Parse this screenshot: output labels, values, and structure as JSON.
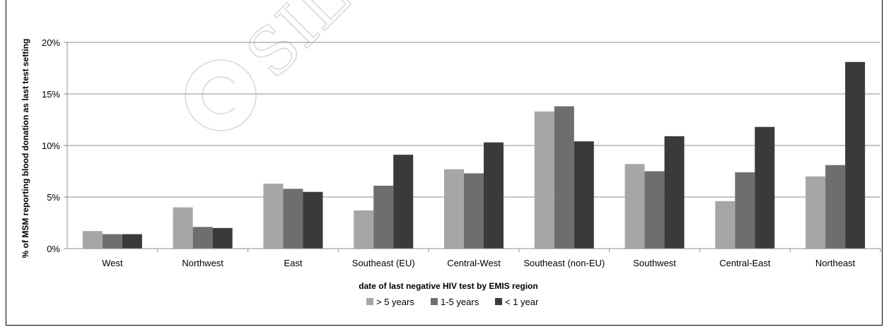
{
  "chart_data": {
    "type": "bar",
    "categories": [
      "West",
      "Northwest",
      "East",
      "Southeast (EU)",
      "Central-West",
      "Southeast (non-EU)",
      "Southwest",
      "Central-East",
      "Northeast"
    ],
    "series": [
      {
        "name": "> 5 years",
        "values": [
          1.7,
          4.0,
          6.3,
          3.7,
          7.7,
          13.3,
          8.2,
          4.6,
          7.0
        ],
        "color": "#a6a6a6"
      },
      {
        "name": "1-5 years",
        "values": [
          1.4,
          2.1,
          5.8,
          6.1,
          7.3,
          13.8,
          7.5,
          7.4,
          8.1
        ],
        "color": "#6e6e6e"
      },
      {
        "name": "< 1 year",
        "values": [
          1.4,
          2.0,
          5.5,
          9.1,
          10.3,
          10.4,
          10.9,
          11.8,
          18.1
        ],
        "color": "#3a3a3a"
      }
    ],
    "ylim": [
      0,
      20
    ],
    "yticks": [
      "0%",
      "5%",
      "10%",
      "15%",
      "20%"
    ],
    "ytick_values": [
      0,
      5,
      10,
      15,
      20
    ],
    "xlabel": "date of last negative HIV test by EMIS region",
    "ylabel": "% of MSM reporting blood donation as last test setting",
    "grid": true,
    "legend_position": "bottom"
  },
  "watermark": "© SIL",
  "colors": {
    "gridline": "#8c8c8c",
    "axis": "#8c8c8c",
    "watermark": "#d9d9d9"
  }
}
